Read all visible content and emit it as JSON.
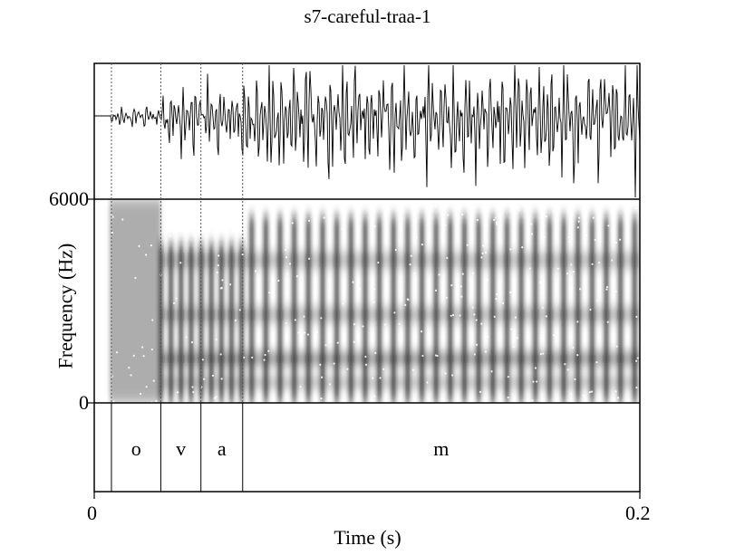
{
  "chart_data": {
    "type": "spectrogram",
    "title": "s7-careful-traa-1",
    "xlabel": "Time (s)",
    "ylabel": "Frequency (Hz)",
    "xlim": [
      0,
      0.2
    ],
    "ylim": [
      0,
      6000
    ],
    "x_ticks": [
      "0",
      "0.2"
    ],
    "y_ticks": [
      "6000",
      "0"
    ],
    "segment_boundaries": [
      0.0063,
      0.0244,
      0.0391,
      0.0544
    ],
    "segments": [
      {
        "label": "o",
        "start": 0.0063,
        "end": 0.0244
      },
      {
        "label": "v",
        "start": 0.0244,
        "end": 0.0391
      },
      {
        "label": "a",
        "start": 0.0391,
        "end": 0.0544
      },
      {
        "label": "m",
        "start": 0.0544,
        "end": 0.2
      }
    ],
    "colors": {
      "ink": "#000000",
      "background": "#ffffff"
    }
  }
}
